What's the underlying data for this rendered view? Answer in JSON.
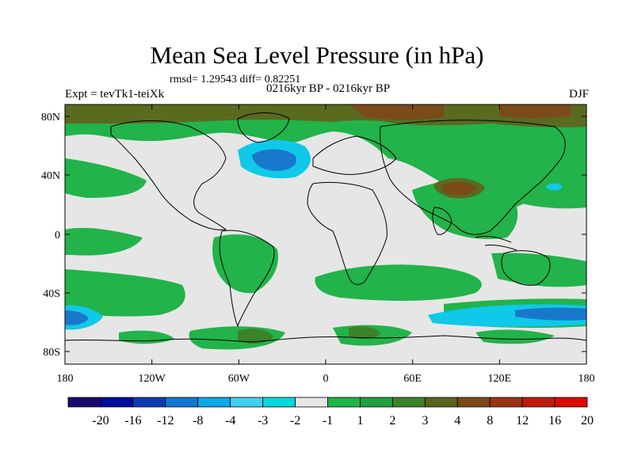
{
  "title": "Mean Sea Level Pressure (in hPa)",
  "stats_line": "rmsd= 1.29543 diff= 0.82251",
  "left_label": "Expt = tevTk1-teiXk",
  "center_label": "0216kyr BP - 0216kyr BP",
  "right_label": "DJF",
  "y_ticks": [
    "80N",
    "40N",
    "0",
    "40S",
    "80S"
  ],
  "x_ticks": [
    "180",
    "120W",
    "60W",
    "0",
    "60E",
    "120E",
    "180"
  ],
  "colorbar": {
    "colors": [
      "#1a0a6e",
      "#000c9a",
      "#0a3cb4",
      "#1078d2",
      "#10a8e6",
      "#40d0f0",
      "#00d8dc",
      "#e6e6e6",
      "#1eb446",
      "#20a040",
      "#3c8228",
      "#5a641e",
      "#7a4a18",
      "#9a3410",
      "#be1c08",
      "#dc0a00"
    ],
    "labels": [
      "-20",
      "-16",
      "-12",
      "-8",
      "-4",
      "-3",
      "-2",
      "-1",
      "1",
      "2",
      "3",
      "4",
      "8",
      "12",
      "16",
      "20"
    ]
  },
  "legend_colors": {
    "neutral": "#e6e6e6",
    "green": "#22b34a",
    "dark_green": "#3c8228",
    "olive": "#5a6a1e",
    "brown": "#7a4a18",
    "light_blue": "#10c8e8",
    "blue": "#1a78cc"
  }
}
